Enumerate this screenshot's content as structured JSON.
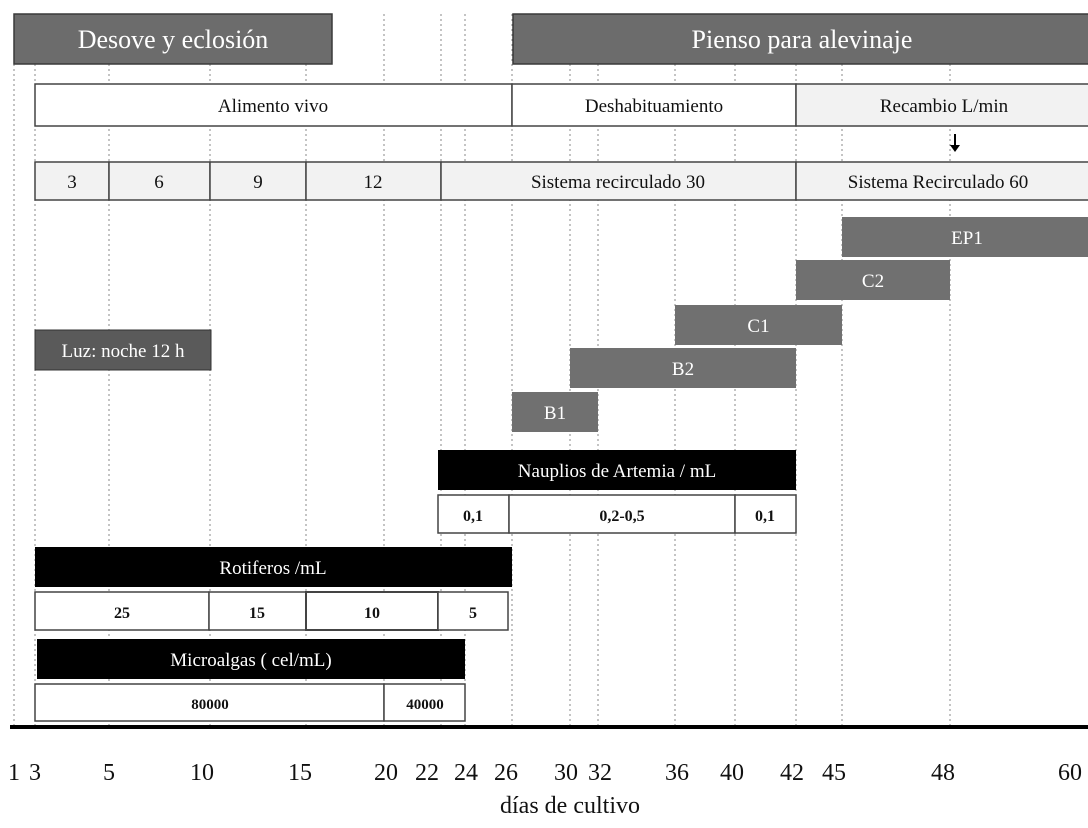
{
  "colors": {
    "dark_gray": "#5a5a5a",
    "mid_gray": "#6c6c6c",
    "black": "#000000",
    "light_fill": "#f2f2f2",
    "white": "#ffffff",
    "grid": "#8a8a8a"
  },
  "headers": {
    "desove": "Desove y eclosión",
    "pienso": "Pienso para alevinaje"
  },
  "phases": {
    "alimento_vivo": "Alimento vivo",
    "deshabituamiento": "Deshabituamiento",
    "recambio": "Recambio L/min"
  },
  "recambio_row": {
    "cells": [
      "3",
      "6",
      "9",
      "12"
    ],
    "sistema_30": "Sistema recirculado 30",
    "sistema_60": "Sistema Recirculado 60"
  },
  "luz": "Luz: noche 12 h",
  "diet_bars": [
    {
      "label": "EP1",
      "start": 45,
      "end": 60
    },
    {
      "label": "C2",
      "start": 42,
      "end": 48
    },
    {
      "label": "C1",
      "start": 36,
      "end": 45
    },
    {
      "label": "B2",
      "start": 30,
      "end": 42
    },
    {
      "label": "B1",
      "start": 26,
      "end": 32
    }
  ],
  "artemia": {
    "title": "Nauplios de Artemia / mL",
    "cells": [
      "0,1",
      "0,2-0,5",
      "0,1"
    ]
  },
  "rotiferos": {
    "title": "Rotiferos /mL",
    "cells": [
      "25",
      "15",
      "10",
      "5"
    ]
  },
  "microalgas": {
    "title": "Microalgas ( cel/mL)",
    "cells": [
      "80000",
      "40000"
    ]
  },
  "axis": {
    "ticks": [
      "1",
      "3",
      "5",
      "10",
      "15",
      "20",
      "22",
      "24",
      "26",
      "30",
      "32",
      "36",
      "40",
      "42",
      "45",
      "48",
      "60"
    ],
    "label": "días de cultivo"
  }
}
